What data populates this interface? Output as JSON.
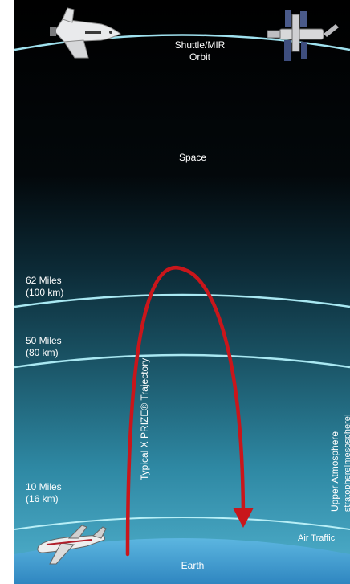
{
  "labels": {
    "orbit_line1": "Shuttle/MIR",
    "orbit_line2": "Orbit",
    "space": "Space",
    "alt_62_miles": "62 Miles",
    "alt_62_km": "(100 km)",
    "alt_50_miles": "50 Miles",
    "alt_50_km": "(80 km)",
    "alt_10_miles": "10 Miles",
    "alt_10_km": "(16 km)",
    "trajectory": "Typical X PRIZE® Trajectory",
    "upper_atmo_line1": "Upper Atmosphere",
    "upper_atmo_line2": "|stratophere|mesosphere|",
    "air_traffic": "Air Traffic",
    "earth": "Earth"
  },
  "colors": {
    "space_top": "#000000",
    "atmosphere_bottom": "#4fb3d4",
    "boundary_line": "#a9e8f2",
    "trajectory": "#c9161b",
    "earth": "#4aa6d6"
  },
  "icons": [
    "space-shuttle-icon",
    "space-station-icon",
    "airliner-icon"
  ]
}
